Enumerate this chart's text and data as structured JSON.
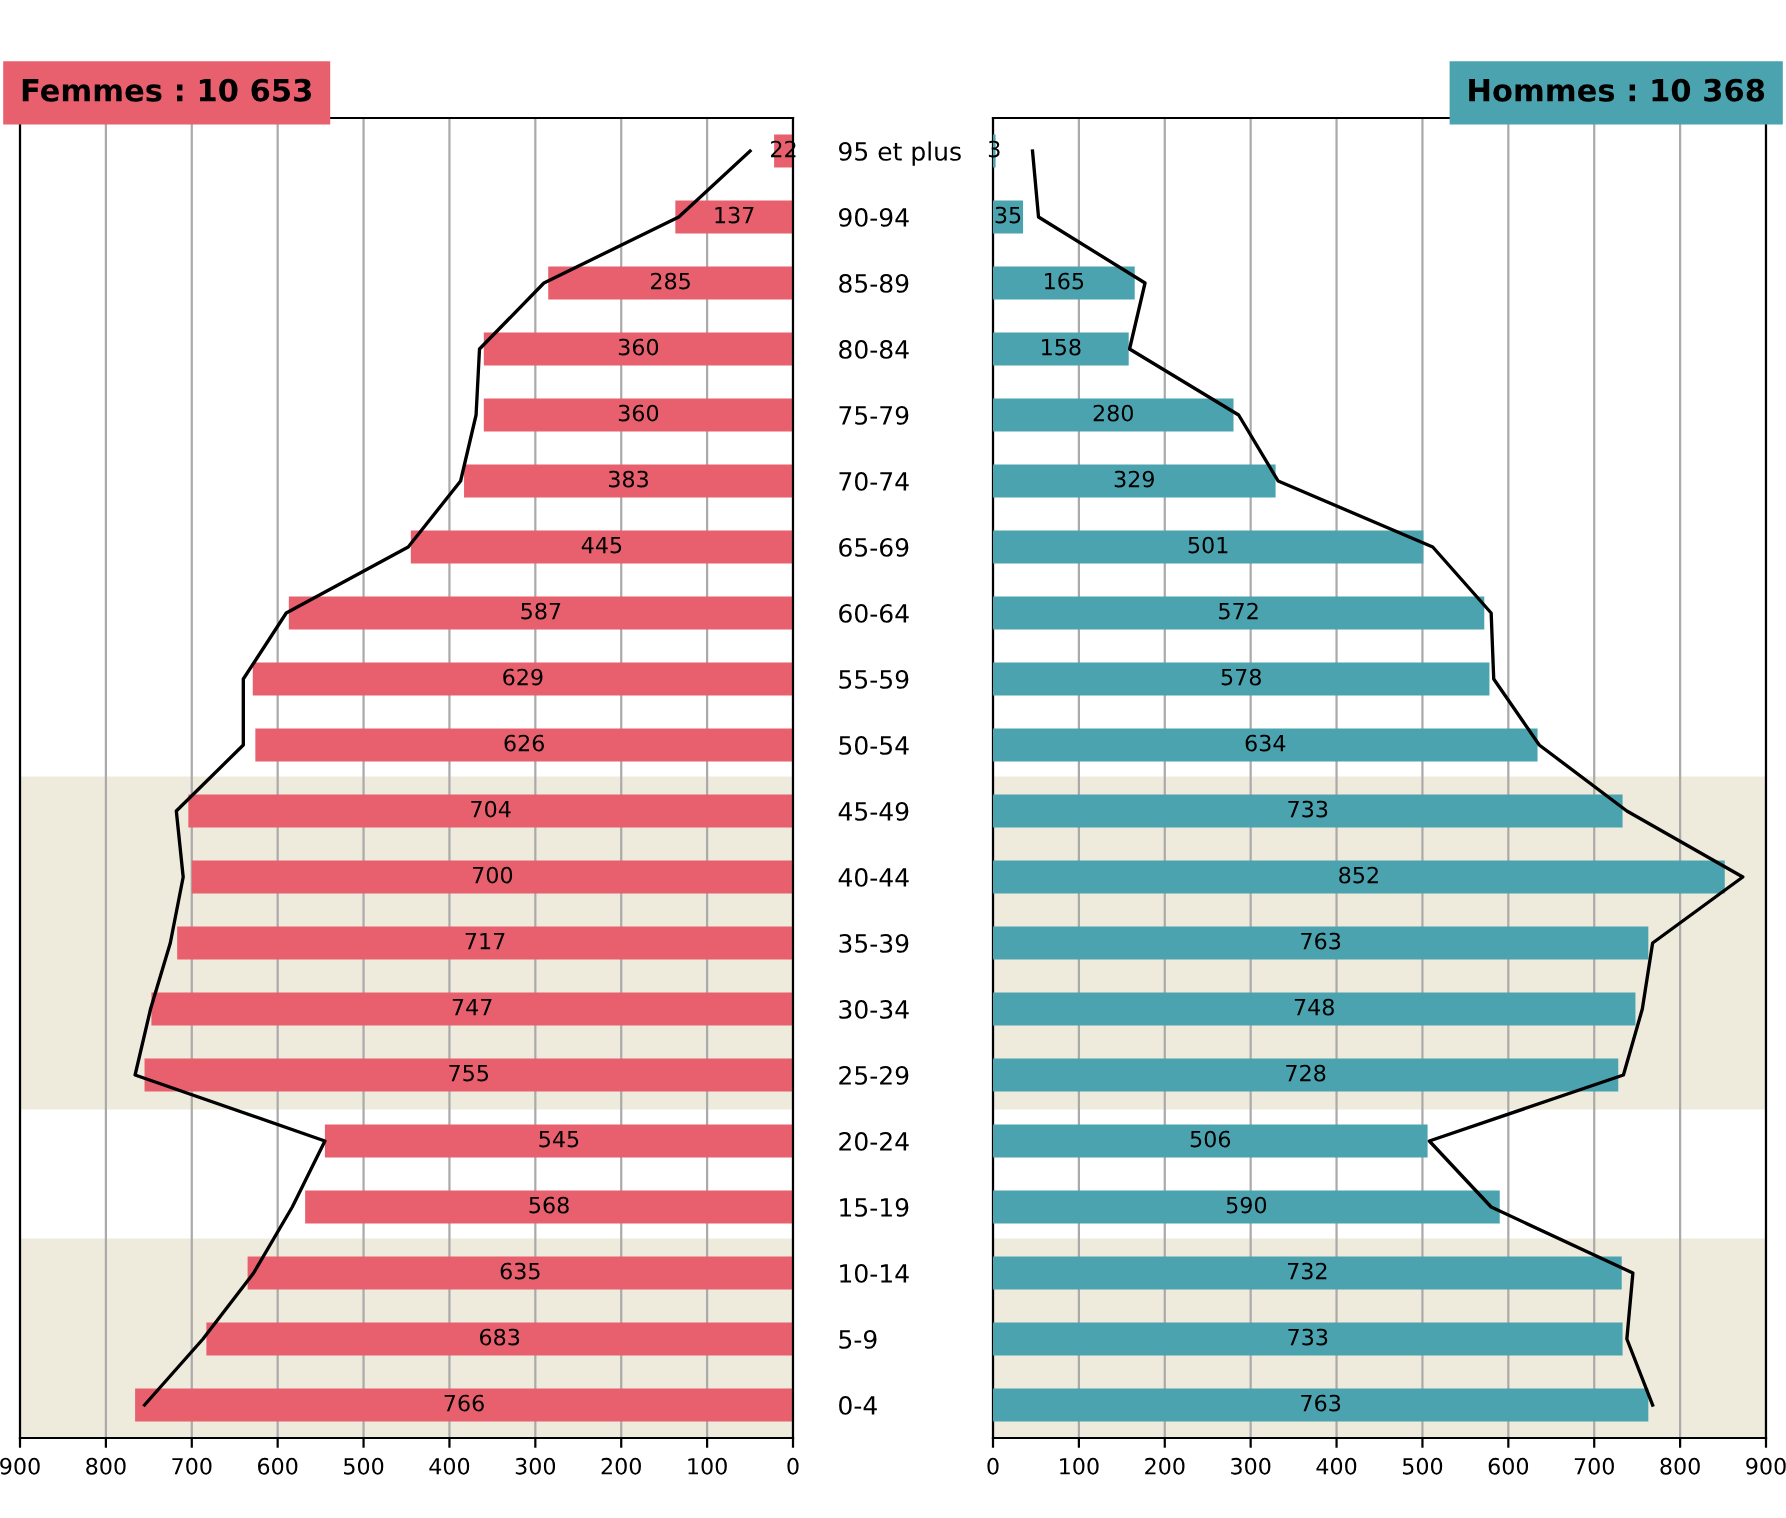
{
  "chart_data": [
    {
      "type": "bar",
      "orientation": "horizontal",
      "title": "Femmes : 10 653",
      "categories": [
        "95 et plus",
        "90-94",
        "85-89",
        "80-84",
        "75-79",
        "70-74",
        "65-69",
        "60-64",
        "55-59",
        "50-54",
        "45-49",
        "40-44",
        "35-39",
        "30-34",
        "25-29",
        "20-24",
        "15-19",
        "10-14",
        "5-9",
        "0-4"
      ],
      "series": [
        {
          "color": "#e8606e",
          "values": [
            22,
            137,
            285,
            360,
            360,
            383,
            445,
            587,
            629,
            626,
            704,
            700,
            717,
            747,
            755,
            545,
            568,
            635,
            683,
            766
          ],
          "value_labels": [
            "22",
            "137",
            "285",
            "360",
            "360",
            "383",
            "445",
            "587",
            "629",
            "626",
            "704",
            "700",
            "717",
            "747",
            "755",
            "545",
            "568",
            "635",
            "683",
            "766"
          ]
        },
        {
          "type": "line",
          "color": "#000000",
          "values": [
            50,
            133,
            290,
            365,
            369,
            387,
            448,
            590,
            640,
            640,
            718,
            710,
            725,
            748,
            766,
            545,
            583,
            628,
            687,
            755
          ]
        }
      ],
      "xlim": [
        900,
        0
      ],
      "xticks": [
        900,
        800,
        700,
        600,
        500,
        400,
        300,
        200,
        100,
        0
      ],
      "grid": "x",
      "bands": [
        {
          "axis": "y",
          "from": "45-49",
          "to": "25-29",
          "color": "#efebdc"
        },
        {
          "axis": "y",
          "from": "10-14",
          "to": "0-4",
          "color": "#efebdc"
        }
      ]
    },
    {
      "type": "bar",
      "orientation": "horizontal",
      "title": "Hommes : 10 368",
      "categories": [
        "95 et plus",
        "90-94",
        "85-89",
        "80-84",
        "75-79",
        "70-74",
        "65-69",
        "60-64",
        "55-59",
        "50-54",
        "45-49",
        "40-44",
        "35-39",
        "30-34",
        "25-29",
        "20-24",
        "15-19",
        "10-14",
        "5-9",
        "0-4"
      ],
      "series": [
        {
          "color": "#4aa3ae",
          "values": [
            3,
            35,
            165,
            158,
            280,
            329,
            501,
            572,
            578,
            634,
            733,
            852,
            763,
            748,
            728,
            506,
            590,
            732,
            733,
            763
          ],
          "value_labels": [
            "3",
            "35",
            "165",
            "158",
            "280",
            "329",
            "501",
            "572",
            "578",
            "634",
            "733",
            "852",
            "763",
            "748",
            "728",
            "506",
            "590",
            "732",
            "733",
            "763"
          ]
        },
        {
          "type": "line",
          "color": "#000000",
          "values": [
            46,
            53,
            177,
            159,
            286,
            332,
            512,
            580,
            583,
            636,
            738,
            873,
            768,
            756,
            734,
            508,
            580,
            745,
            738,
            768
          ]
        }
      ],
      "xlim": [
        0,
        900
      ],
      "xticks": [
        0,
        100,
        200,
        300,
        400,
        500,
        600,
        700,
        800,
        900
      ],
      "grid": "x",
      "tick_labels": "x",
      "bands": [
        {
          "axis": "y",
          "from": "45-49",
          "to": "25-29",
          "color": "#efebdc"
        },
        {
          "axis": "y",
          "from": "10-14",
          "to": "0-4",
          "color": "#efebdc"
        }
      ]
    }
  ]
}
